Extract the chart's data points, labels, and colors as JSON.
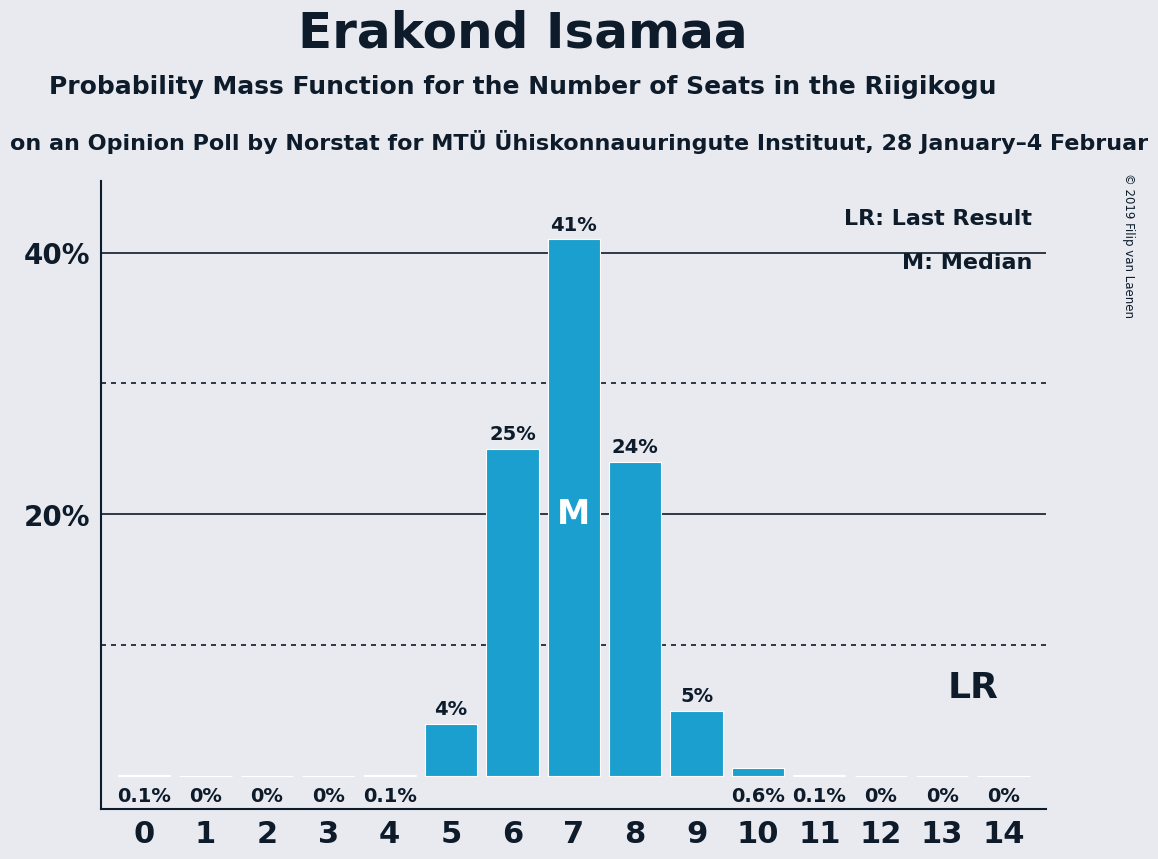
{
  "title": "Erakond Isamaa",
  "subtitle": "Probability Mass Function for the Number of Seats in the Riigikogu",
  "subsubtitle": "on an Opinion Poll by Norstat for MTÜ Ühiskonnauuringute Instituut, 28 January–4 Februar",
  "copyright": "© 2019 Filip van Laenen",
  "categories": [
    0,
    1,
    2,
    3,
    4,
    5,
    6,
    7,
    8,
    9,
    10,
    11,
    12,
    13,
    14
  ],
  "values": [
    0.001,
    0.0,
    0.0,
    0.0,
    0.001,
    0.04,
    0.25,
    0.41,
    0.24,
    0.05,
    0.006,
    0.001,
    0.0,
    0.0,
    0.0
  ],
  "bar_labels": [
    "0.1%",
    "0%",
    "0%",
    "0%",
    "0.1%",
    "4%",
    "25%",
    "41%",
    "24%",
    "5%",
    "0.6%",
    "0.1%",
    "0%",
    "0%",
    "0%"
  ],
  "bar_color": "#1a9fce",
  "background_color": "#e8eaf0",
  "median_seat": 7,
  "legend_lr": "LR: Last Result",
  "legend_m": "M: Median",
  "dotted_lines": [
    0.1,
    0.3
  ],
  "solid_lines": [
    0.2,
    0.4
  ],
  "title_fontsize": 36,
  "subtitle_fontsize": 18,
  "subsubtitle_fontsize": 16,
  "axis_label_color": "#0d1b2a",
  "bar_label_fontsize": 14,
  "ytick_fontsize": 20,
  "xtick_fontsize": 22
}
